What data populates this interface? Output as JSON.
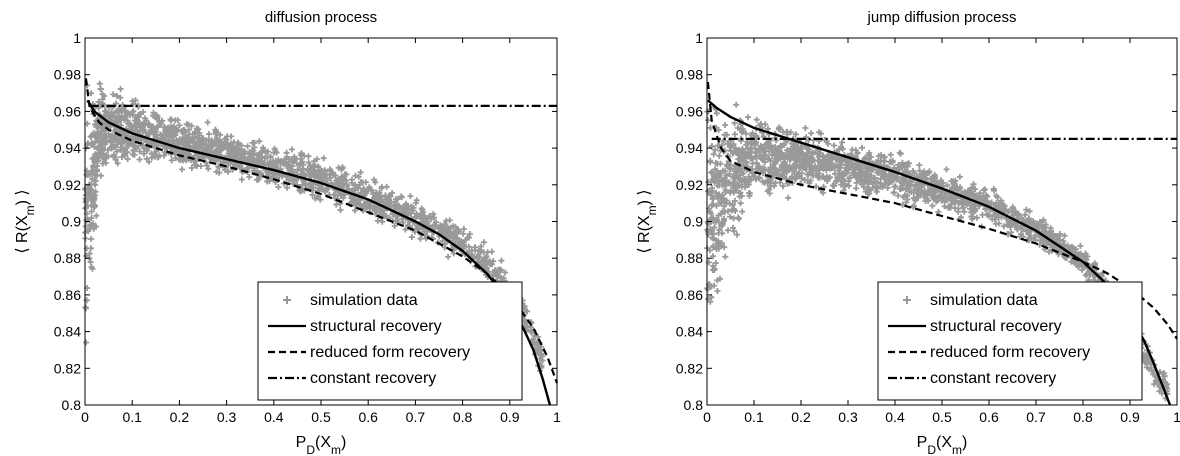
{
  "chart_data": [
    {
      "type": "scatter",
      "title": "diffusion process",
      "xlabel": "P_D(X_m)",
      "ylabel": "⟨ R(X_m) ⟩",
      "xlim": [
        0,
        1
      ],
      "ylim": [
        0.8,
        1
      ],
      "xticks": [
        "0",
        "0.1",
        "0.2",
        "0.3",
        "0.4",
        "0.5",
        "0.6",
        "0.7",
        "0.8",
        "0.9",
        "1"
      ],
      "yticks": [
        "0.8",
        "0.82",
        "0.84",
        "0.86",
        "0.88",
        "0.9",
        "0.92",
        "0.94",
        "0.96",
        "0.98",
        "1"
      ],
      "grid": false,
      "legend_position": "bottom-right",
      "series": [
        {
          "name": "simulation data",
          "kind": "scatter",
          "color": "#999999",
          "band_x": [
            0,
            0.01,
            0.03,
            0.05,
            0.1,
            0.2,
            0.3,
            0.4,
            0.5,
            0.6,
            0.7,
            0.8,
            0.85,
            0.9,
            0.93,
            0.95,
            0.97
          ],
          "band_upper": [
            1.0,
            0.99,
            0.985,
            0.978,
            0.97,
            0.96,
            0.952,
            0.945,
            0.937,
            0.928,
            0.915,
            0.9,
            0.89,
            0.875,
            0.862,
            0.85,
            0.835
          ],
          "band_lower": [
            0.8,
            0.84,
            0.91,
            0.925,
            0.928,
            0.926,
            0.922,
            0.915,
            0.908,
            0.898,
            0.888,
            0.876,
            0.865,
            0.848,
            0.835,
            0.822,
            0.815
          ]
        },
        {
          "name": "structural recovery",
          "kind": "line",
          "style": "solid",
          "color": "#000000",
          "x": [
            0.005,
            0.02,
            0.05,
            0.1,
            0.2,
            0.3,
            0.4,
            0.5,
            0.6,
            0.7,
            0.75,
            0.8,
            0.85,
            0.9,
            0.93,
            0.95,
            0.97,
            0.985
          ],
          "y": [
            0.966,
            0.96,
            0.954,
            0.948,
            0.94,
            0.934,
            0.928,
            0.921,
            0.912,
            0.9,
            0.893,
            0.884,
            0.872,
            0.856,
            0.841,
            0.83,
            0.814,
            0.8
          ]
        },
        {
          "name": "reduced form recovery",
          "kind": "line",
          "style": "dashed",
          "color": "#000000",
          "x": [
            0.002,
            0.01,
            0.03,
            0.05,
            0.1,
            0.2,
            0.3,
            0.4,
            0.5,
            0.6,
            0.7,
            0.8,
            0.85,
            0.9,
            0.95,
            0.98,
            1.0
          ],
          "y": [
            0.978,
            0.962,
            0.954,
            0.95,
            0.944,
            0.936,
            0.93,
            0.923,
            0.915,
            0.905,
            0.895,
            0.881,
            0.872,
            0.86,
            0.842,
            0.826,
            0.812
          ]
        },
        {
          "name": "constant recovery",
          "kind": "line",
          "style": "dashdot",
          "color": "#000000",
          "x": [
            0.01,
            1.0
          ],
          "y": [
            0.963,
            0.963
          ]
        }
      ]
    },
    {
      "type": "scatter",
      "title": "jump diffusion process",
      "xlabel": "P_D(X_m)",
      "ylabel": "⟨ R(X_m) ⟩",
      "xlim": [
        0,
        1
      ],
      "ylim": [
        0.8,
        1
      ],
      "xticks": [
        "0",
        "0.1",
        "0.2",
        "0.3",
        "0.4",
        "0.5",
        "0.6",
        "0.7",
        "0.8",
        "0.9",
        "1"
      ],
      "yticks": [
        "0.8",
        "0.82",
        "0.84",
        "0.86",
        "0.88",
        "0.9",
        "0.92",
        "0.94",
        "0.96",
        "0.98",
        "1"
      ],
      "grid": false,
      "legend_position": "bottom-right",
      "series": [
        {
          "name": "simulation data",
          "kind": "scatter",
          "color": "#999999",
          "band_x": [
            0,
            0.01,
            0.03,
            0.05,
            0.1,
            0.2,
            0.3,
            0.4,
            0.5,
            0.6,
            0.7,
            0.8,
            0.85,
            0.9,
            0.93,
            0.95,
            0.97,
            0.98
          ],
          "band_upper": [
            1.0,
            0.99,
            0.98,
            0.972,
            0.964,
            0.955,
            0.947,
            0.94,
            0.932,
            0.921,
            0.907,
            0.887,
            0.872,
            0.855,
            0.84,
            0.83,
            0.82,
            0.815
          ],
          "band_lower": [
            0.8,
            0.82,
            0.85,
            0.88,
            0.905,
            0.912,
            0.912,
            0.908,
            0.902,
            0.895,
            0.885,
            0.868,
            0.853,
            0.832,
            0.818,
            0.808,
            0.801,
            0.8
          ]
        },
        {
          "name": "structural recovery",
          "kind": "line",
          "style": "solid",
          "color": "#000000",
          "x": [
            0.002,
            0.02,
            0.05,
            0.1,
            0.2,
            0.3,
            0.4,
            0.5,
            0.6,
            0.7,
            0.8,
            0.85,
            0.9,
            0.93,
            0.95,
            0.97,
            0.985
          ],
          "y": [
            0.966,
            0.962,
            0.957,
            0.951,
            0.943,
            0.935,
            0.927,
            0.918,
            0.908,
            0.895,
            0.878,
            0.866,
            0.849,
            0.835,
            0.823,
            0.81,
            0.8
          ]
        },
        {
          "name": "reduced form recovery",
          "kind": "line",
          "style": "dashed",
          "color": "#000000",
          "x": [
            0.002,
            0.01,
            0.03,
            0.05,
            0.1,
            0.2,
            0.3,
            0.4,
            0.5,
            0.6,
            0.7,
            0.8,
            0.85,
            0.9,
            0.95,
            0.98,
            1.0
          ],
          "y": [
            0.976,
            0.955,
            0.94,
            0.933,
            0.927,
            0.92,
            0.915,
            0.91,
            0.903,
            0.896,
            0.888,
            0.878,
            0.872,
            0.864,
            0.853,
            0.844,
            0.836
          ]
        },
        {
          "name": "constant recovery",
          "kind": "line",
          "style": "dashdot",
          "color": "#000000",
          "x": [
            0.01,
            1.0
          ],
          "y": [
            0.945,
            0.945
          ]
        }
      ]
    }
  ]
}
